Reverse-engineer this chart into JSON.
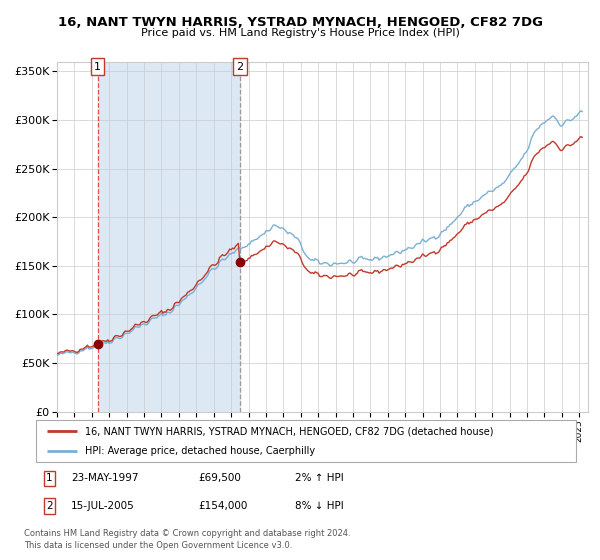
{
  "title": "16, NANT TWYN HARRIS, YSTRAD MYNACH, HENGOED, CF82 7DG",
  "subtitle": "Price paid vs. HM Land Registry's House Price Index (HPI)",
  "legend_line1": "16, NANT TWYN HARRIS, YSTRAD MYNACH, HENGOED, CF82 7DG (detached house)",
  "legend_line2": "HPI: Average price, detached house, Caerphilly",
  "purchase1_price": 69500,
  "purchase2_price": 154000,
  "p1_time": 1997.3333,
  "p2_time": 2005.5,
  "footer": "Contains HM Land Registry data © Crown copyright and database right 2024.\nThis data is licensed under the Open Government Licence v3.0.",
  "ylim": [
    0,
    360000
  ],
  "yticks": [
    0,
    50000,
    100000,
    150000,
    200000,
    250000,
    300000,
    350000
  ],
  "background_color": "#ffffff",
  "shading_color": "#dce9f5",
  "grid_color": "#cccccc",
  "hpi_line_color": "#7bafd4",
  "property_line_color": "#c0392b",
  "dot_color": "#8b0000",
  "vline1_color": "#e05050",
  "vline2_color": "#999999",
  "xlim_start": 1995.0,
  "xlim_end": 2025.5
}
